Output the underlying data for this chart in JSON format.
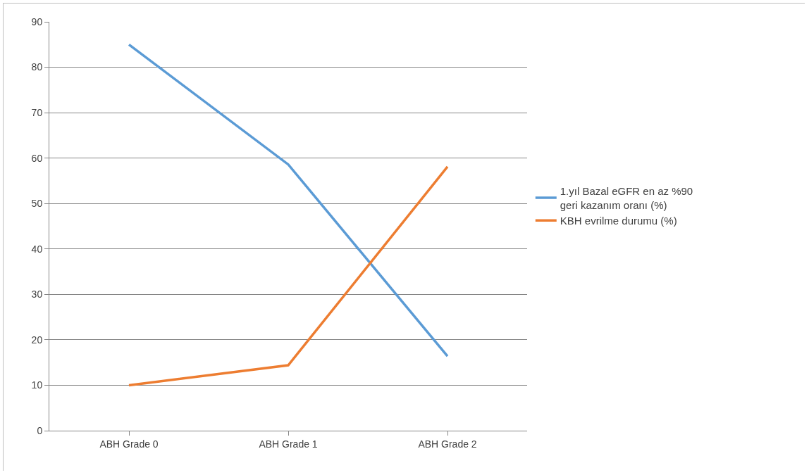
{
  "chart_data": {
    "type": "line",
    "categories": [
      "ABH Grade 0",
      "ABH Grade 1",
      "ABH Grade 2"
    ],
    "series": [
      {
        "name": "1.yıl Bazal eGFR en az %90 geri kazanım oranı (%)",
        "color": "#5b9bd5",
        "values": [
          85,
          58.6,
          16.4
        ]
      },
      {
        "name": "KBH evrilme durumu (%)",
        "color": "#ed7d31",
        "values": [
          10,
          14.4,
          58.1
        ]
      }
    ],
    "ylim": [
      0,
      90
    ],
    "yticks": [
      0,
      10,
      20,
      30,
      40,
      50,
      60,
      70,
      80,
      90
    ],
    "grid": "y",
    "legend": "right",
    "marker": "none",
    "line_style": "solid"
  }
}
